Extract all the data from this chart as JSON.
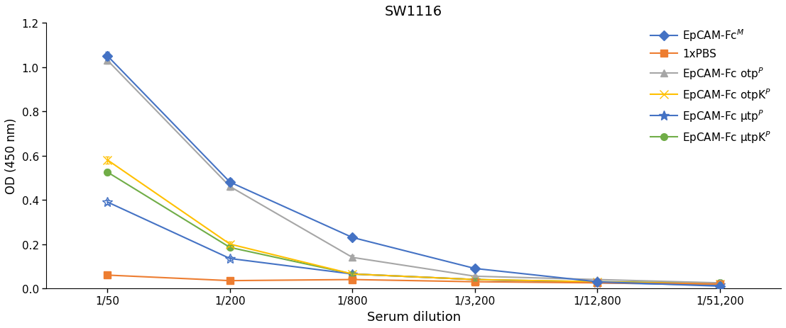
{
  "title": "SW1116",
  "xlabel": "Serum dilution",
  "ylabel": "OD (450 nm)",
  "x_labels": [
    "1/50",
    "1/200",
    "1/800",
    "1/3,200",
    "1/12,800",
    "1/51,200"
  ],
  "x_positions": [
    0,
    1,
    2,
    3,
    4,
    5
  ],
  "ylim": [
    0,
    1.2
  ],
  "yticks": [
    0.0,
    0.2,
    0.4,
    0.6,
    0.8,
    1.0,
    1.2
  ],
  "series": [
    {
      "name_base": "EpCAM-Fc",
      "name_super": "M",
      "name_sub": "",
      "color": "#4472C4",
      "marker": "D",
      "markersize": 7,
      "linestyle": "-",
      "values": [
        1.05,
        0.48,
        0.23,
        0.09,
        0.03,
        0.01
      ],
      "errors": [
        0.02,
        0.015,
        0.01,
        0.008,
        0.005,
        0.003
      ]
    },
    {
      "name_base": "1xPBS",
      "name_super": "",
      "name_sub": "",
      "color": "#ED7D31",
      "marker": "s",
      "markersize": 7,
      "linestyle": "-",
      "values": [
        0.06,
        0.035,
        0.04,
        0.03,
        0.025,
        0.02
      ],
      "errors": [
        0.005,
        0.004,
        0.004,
        0.003,
        0.003,
        0.002
      ]
    },
    {
      "name_base": "EpCAM-Fc οtp",
      "name_super": "P",
      "name_sub": "",
      "color": "#A6A6A6",
      "marker": "^",
      "markersize": 7,
      "linestyle": "-",
      "values": [
        1.03,
        0.46,
        0.14,
        0.055,
        0.04,
        0.025
      ],
      "errors": [
        0.015,
        0.015,
        0.01,
        0.006,
        0.005,
        0.003
      ]
    },
    {
      "name_base": "EpCAM-Fc οtpK",
      "name_super": "P",
      "name_sub": "",
      "color": "#FFC000",
      "marker": "x",
      "markersize": 8,
      "linestyle": "-",
      "values": [
        0.58,
        0.2,
        0.065,
        0.04,
        0.03,
        0.02
      ],
      "errors": [
        0.015,
        0.01,
        0.006,
        0.005,
        0.004,
        0.003
      ]
    },
    {
      "name_base": "EpCAM-Fc μtp",
      "name_super": "P",
      "name_sub": "",
      "color": "#4472C4",
      "marker": "*",
      "markersize": 10,
      "linestyle": "-",
      "values": [
        0.39,
        0.135,
        0.065,
        0.04,
        0.025,
        0.015
      ],
      "errors": [
        0.01,
        0.008,
        0.006,
        0.005,
        0.004,
        0.003
      ]
    },
    {
      "name_base": "EpCAM-Fc μtpK",
      "name_super": "P",
      "name_sub": "",
      "color": "#70AD47",
      "marker": "o",
      "markersize": 7,
      "linestyle": "-",
      "values": [
        0.525,
        0.185,
        0.065,
        0.04,
        0.03,
        0.025
      ],
      "errors": [
        0.012,
        0.01,
        0.006,
        0.005,
        0.004,
        0.003
      ]
    }
  ],
  "background_color": "#ffffff",
  "legend_labels": [
    [
      "EpCAM-Fc",
      "M",
      ""
    ],
    [
      "1xPBS",
      "",
      ""
    ],
    [
      "EpCAM-Fc οtp",
      "P",
      ""
    ],
    [
      "EpCAM-Fc οtpK",
      "P",
      ""
    ],
    [
      "EpCAM-Fc μtp",
      "P",
      ""
    ],
    [
      "EpCAM-Fc μtpK",
      "P",
      ""
    ]
  ]
}
